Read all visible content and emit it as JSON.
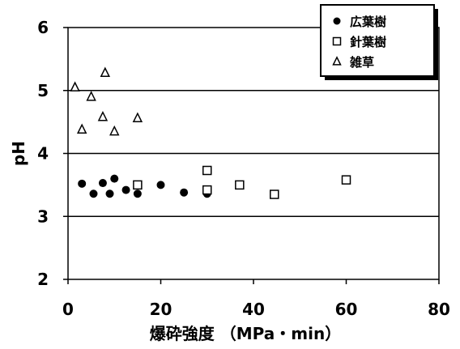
{
  "chart_data": {
    "type": "scatter",
    "xlabel": "爆砕強度 （MPa・min）",
    "ylabel": "pH",
    "xlim": [
      0,
      80
    ],
    "ylim": [
      2,
      6
    ],
    "x_ticks": [
      "0",
      "20",
      "40",
      "60",
      "80"
    ],
    "y_ticks": [
      "2",
      "3",
      "4",
      "5",
      "6"
    ],
    "gridlines_y": [
      3,
      4,
      5
    ],
    "legend_position": "top-right",
    "series": [
      {
        "name": "広葉樹",
        "marker": "filled-circle",
        "points": [
          {
            "x": 3,
            "y": 3.52
          },
          {
            "x": 5.5,
            "y": 3.36
          },
          {
            "x": 7.5,
            "y": 3.53
          },
          {
            "x": 9,
            "y": 3.36
          },
          {
            "x": 10,
            "y": 3.6
          },
          {
            "x": 12.5,
            "y": 3.42
          },
          {
            "x": 15,
            "y": 3.36
          },
          {
            "x": 20,
            "y": 3.5
          },
          {
            "x": 25,
            "y": 3.38
          },
          {
            "x": 30,
            "y": 3.36
          }
        ]
      },
      {
        "name": "針葉樹",
        "marker": "open-square",
        "points": [
          {
            "x": 15,
            "y": 3.5
          },
          {
            "x": 30,
            "y": 3.73
          },
          {
            "x": 30,
            "y": 3.42
          },
          {
            "x": 37,
            "y": 3.5
          },
          {
            "x": 44.5,
            "y": 3.35
          },
          {
            "x": 60,
            "y": 3.58
          }
        ]
      },
      {
        "name": "雑草",
        "marker": "open-triangle",
        "points": [
          {
            "x": 1.5,
            "y": 5.05
          },
          {
            "x": 3,
            "y": 4.38
          },
          {
            "x": 5,
            "y": 4.9
          },
          {
            "x": 7.5,
            "y": 4.58
          },
          {
            "x": 8,
            "y": 5.28
          },
          {
            "x": 10,
            "y": 4.35
          },
          {
            "x": 15,
            "y": 4.56
          }
        ]
      }
    ]
  }
}
